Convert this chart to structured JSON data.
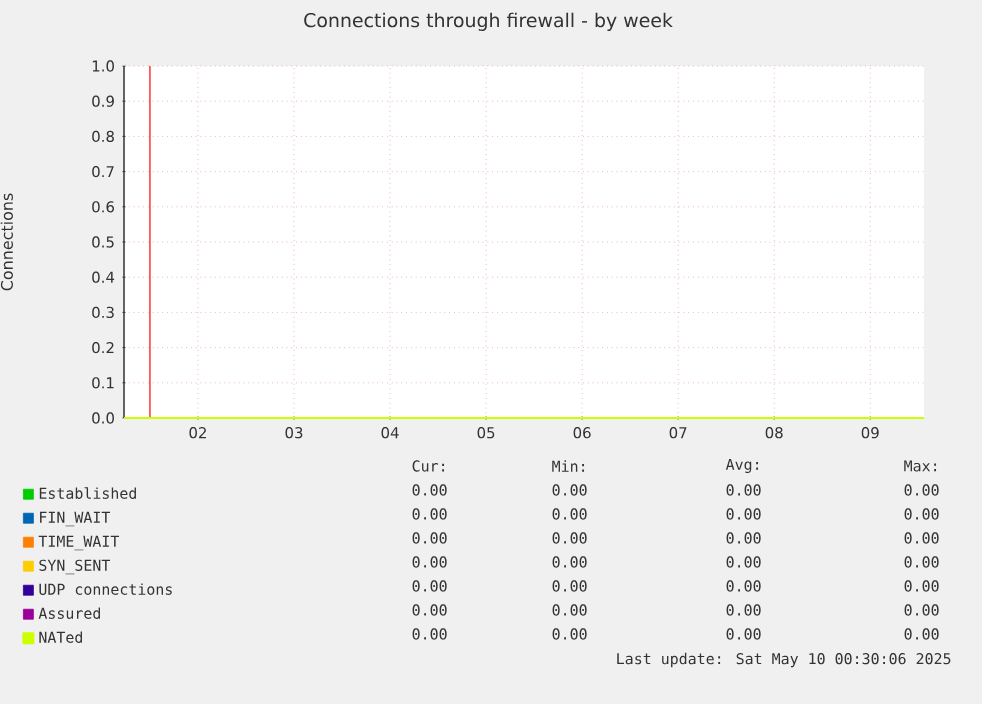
{
  "chart_data": {
    "type": "line",
    "title": "Connections through firewall - by week",
    "ylabel": "Connections",
    "xlim": [
      1.23,
      9.56
    ],
    "xticks": [
      {
        "value": 2,
        "label": "02"
      },
      {
        "value": 3,
        "label": "03"
      },
      {
        "value": 4,
        "label": "04"
      },
      {
        "value": 5,
        "label": "05"
      },
      {
        "value": 6,
        "label": "06"
      },
      {
        "value": 7,
        "label": "07"
      },
      {
        "value": 8,
        "label": "08"
      },
      {
        "value": 9,
        "label": "09"
      }
    ],
    "ylim": [
      0,
      1
    ],
    "yticks": [
      {
        "value": 0,
        "label": "0.0"
      },
      {
        "value": 0.1,
        "label": "0.1"
      },
      {
        "value": 0.2,
        "label": "0.2"
      },
      {
        "value": 0.3,
        "label": "0.3"
      },
      {
        "value": 0.4,
        "label": "0.4"
      },
      {
        "value": 0.5,
        "label": "0.5"
      },
      {
        "value": 0.6,
        "label": "0.6"
      },
      {
        "value": 0.7,
        "label": "0.7"
      },
      {
        "value": 0.8,
        "label": "0.8"
      },
      {
        "value": 0.9,
        "label": "0.9"
      },
      {
        "value": 1,
        "label": "1.0"
      }
    ],
    "x": [
      1.23,
      9.56
    ],
    "series": [
      {
        "name": "Established",
        "color": "#00cc00",
        "values": [
          null,
          null
        ]
      },
      {
        "name": "FIN_WAIT",
        "color": "#0066b3",
        "values": [
          null,
          null
        ]
      },
      {
        "name": "TIME_WAIT",
        "color": "#ff8000",
        "values": [
          null,
          null
        ]
      },
      {
        "name": "SYN_SENT",
        "color": "#ffcc00",
        "values": [
          null,
          null
        ]
      },
      {
        "name": "UDP connections",
        "color": "#330099",
        "values": [
          null,
          null
        ]
      },
      {
        "name": "Assured",
        "color": "#990099",
        "values": [
          null,
          null
        ]
      },
      {
        "name": "NATed",
        "color": "#ccff00",
        "values": [
          0,
          0
        ]
      }
    ],
    "ref_lines": [
      {
        "axis": "x",
        "value": 1.5,
        "color": "#ff0000"
      }
    ],
    "annotations": [
      "Cur:",
      "Min:",
      "Avg:",
      "Max:",
      "0.00",
      "0.00",
      "0.00",
      "0.00",
      "0.00",
      "0.00",
      "0.00",
      "0.00",
      "0.00",
      "0.00",
      "0.00",
      "0.00",
      "0.00",
      "0.00",
      "0.00",
      "0.00",
      "0.00",
      "0.00",
      "0.00",
      "0.00",
      "0.00",
      "0.00",
      "0.00",
      "0.00",
      "0.00",
      "0.00",
      "0.00",
      "0.00",
      "Last update: Sat May 10 00:30:06 2025"
    ],
    "grid": true,
    "legend": "bottom",
    "marker": "none"
  }
}
